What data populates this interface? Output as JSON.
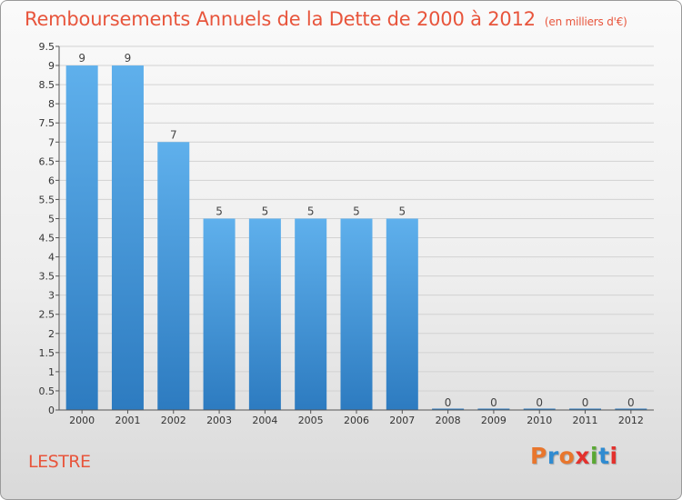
{
  "title": "Remboursements Annuels de la Dette de 2000 à 2012",
  "subtitle": "(en milliers d'€)",
  "place": "LESTRE",
  "logo": "Proxiti",
  "colors": {
    "title": "#e8553c",
    "bar_top": "#5fb0ec",
    "bar_bottom": "#2d7bc0",
    "logo": [
      "#e8762d",
      "#2f8bd1",
      "#e8762d",
      "#e3312d",
      "#5aa834",
      "#2f8bd1",
      "#e3312d"
    ]
  },
  "chart_data": {
    "type": "bar",
    "title": "Remboursements Annuels de la Dette de 2000 à 2012",
    "subtitle": "(en milliers d'€)",
    "categories": [
      "2000",
      "2001",
      "2002",
      "2003",
      "2004",
      "2005",
      "2006",
      "2007",
      "2008",
      "2009",
      "2010",
      "2011",
      "2012"
    ],
    "values": [
      9,
      9,
      7,
      5,
      5,
      5,
      5,
      5,
      0,
      0,
      0,
      0,
      0
    ],
    "ylim": [
      0,
      9.5
    ],
    "yticks": [
      "0",
      "0.5",
      "1",
      "1.5",
      "2",
      "2.5",
      "3",
      "3.5",
      "4",
      "4.5",
      "5",
      "5.5",
      "6",
      "6.5",
      "7",
      "7.5",
      "8",
      "8.5",
      "9",
      "9.5"
    ],
    "xlabel": "",
    "ylabel": "",
    "grid": true
  }
}
